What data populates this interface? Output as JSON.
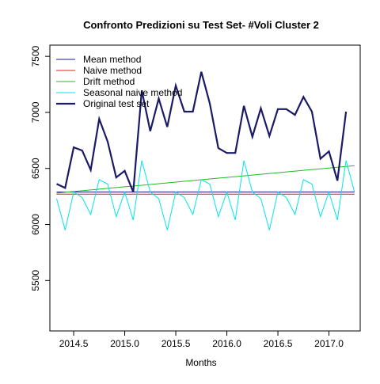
{
  "chart_data": {
    "type": "line",
    "title": "Confronto Predizioni su Test Set- #Voli Cluster  2",
    "x_label": "Months",
    "x": [
      2014.333,
      2014.417,
      2014.5,
      2014.583,
      2014.667,
      2014.75,
      2014.833,
      2014.917,
      2015,
      2015.083,
      2015.167,
      2015.25,
      2015.333,
      2015.417,
      2015.5,
      2015.583,
      2015.667,
      2015.75,
      2015.833,
      2015.917,
      2016,
      2016.083,
      2016.167,
      2016.25,
      2016.333,
      2016.417,
      2016.5,
      2016.583,
      2016.667,
      2016.75,
      2016.833,
      2016.917,
      2017,
      2017.083,
      2017.167,
      2017.25
    ],
    "series": [
      {
        "name": "Mean method",
        "color": "#1a1a8c",
        "width": 1,
        "values": [
          6290,
          6290,
          6290,
          6290,
          6290,
          6290,
          6290,
          6290,
          6290,
          6290,
          6290,
          6290,
          6290,
          6290,
          6290,
          6290,
          6290,
          6290,
          6290,
          6290,
          6290,
          6290,
          6290,
          6290,
          6290,
          6290,
          6290,
          6290,
          6290,
          6290,
          6290,
          6290,
          6290,
          6290,
          6290,
          6290
        ]
      },
      {
        "name": "Naive method",
        "color": "#e02020",
        "width": 1,
        "values": [
          6270,
          6270,
          6270,
          6270,
          6270,
          6270,
          6270,
          6270,
          6270,
          6270,
          6270,
          6270,
          6270,
          6270,
          6270,
          6270,
          6270,
          6270,
          6270,
          6270,
          6270,
          6270,
          6270,
          6270,
          6270,
          6270,
          6270,
          6270,
          6270,
          6270,
          6270,
          6270,
          6270,
          6270,
          6270,
          6270
        ]
      },
      {
        "name": "Drift method",
        "color": "#22bb22",
        "width": 1,
        "values": [
          6280,
          6287,
          6294,
          6301,
          6308,
          6315,
          6322,
          6329,
          6336,
          6343,
          6350,
          6357,
          6364,
          6371,
          6378,
          6385,
          6392,
          6399,
          6406,
          6413,
          6420,
          6427,
          6434,
          6441,
          6448,
          6455,
          6462,
          6469,
          6476,
          6483,
          6490,
          6497,
          6504,
          6511,
          6518,
          6525
        ]
      },
      {
        "name": "Seasonal naive method",
        "color": "#00e5ee",
        "width": 1,
        "values": [
          6230,
          5950,
          6290,
          6240,
          6090,
          6400,
          6360,
          6070,
          6290,
          6040,
          6570,
          6290,
          6230,
          5950,
          6290,
          6240,
          6090,
          6400,
          6360,
          6070,
          6290,
          6040,
          6570,
          6290,
          6230,
          5950,
          6290,
          6240,
          6090,
          6400,
          6360,
          6070,
          6290,
          6040,
          6570,
          6290
        ]
      },
      {
        "name": "Original test set",
        "color": "#1a1a66",
        "width": 2.2,
        "values": [
          6362,
          6326,
          6688,
          6660,
          6486,
          6942,
          6739,
          6420,
          6478,
          6290,
          7196,
          6833,
          7123,
          6870,
          7239,
          7007,
          7007,
          7362,
          7080,
          6681,
          6638,
          6638,
          7058,
          6783,
          7036,
          6790,
          7029,
          7029,
          6978,
          7138,
          7007,
          6587,
          6652,
          6391,
          7007,
          null
        ]
      }
    ],
    "xlim": [
      2014.267,
      2017.306
    ],
    "ylim": [
      5050,
      7600
    ],
    "xticks": [
      2014.5,
      {
        "value": 2015,
        "label": "2015.0"
      },
      2015.5,
      {
        "value": 2016,
        "label": "2016.0"
      },
      2016.5,
      {
        "value": 2017,
        "label": "2017.0"
      }
    ],
    "yticks": [
      5500,
      6000,
      6500,
      7000,
      7500
    ],
    "legend": "top-left"
  }
}
